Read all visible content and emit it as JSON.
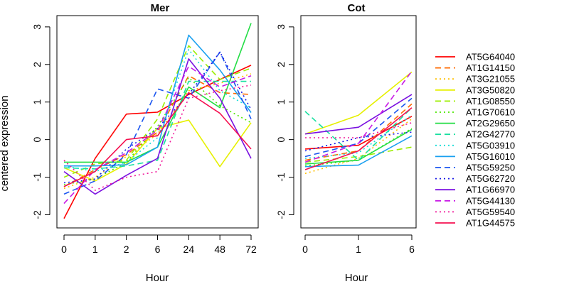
{
  "figure": {
    "ylabel": "centered expression",
    "legend_placement": "right"
  },
  "series_legend": [
    {
      "name": "AT5G64040",
      "color": "#FF0000",
      "dash": "solid"
    },
    {
      "name": "AT1G14150",
      "color": "#FF6A00",
      "dash": "dashed"
    },
    {
      "name": "AT3G21055",
      "color": "#FFC000",
      "dash": "dotted"
    },
    {
      "name": "AT3G50820",
      "color": "#E6F000",
      "dash": "solid"
    },
    {
      "name": "AT1G08550",
      "color": "#9BEE00",
      "dash": "dashed"
    },
    {
      "name": "AT1G70610",
      "color": "#4CE800",
      "dash": "dotted"
    },
    {
      "name": "AT2G29650",
      "color": "#22DD44",
      "dash": "solid"
    },
    {
      "name": "AT2G42770",
      "color": "#18E0A0",
      "dash": "dashed"
    },
    {
      "name": "AT5G03910",
      "color": "#18DDD8",
      "dash": "dotted"
    },
    {
      "name": "AT5G16010",
      "color": "#1AA0F0",
      "dash": "solid"
    },
    {
      "name": "AT5G59250",
      "color": "#1A55F0",
      "dash": "dashed"
    },
    {
      "name": "AT5G62720",
      "color": "#1A1AE6",
      "dash": "dotted"
    },
    {
      "name": "AT1G66970",
      "color": "#7A10E0",
      "dash": "solid"
    },
    {
      "name": "AT5G44130",
      "color": "#C81AE6",
      "dash": "dashed"
    },
    {
      "name": "AT5G59540",
      "color": "#F0189A",
      "dash": "dotted"
    },
    {
      "name": "AT1G44575",
      "color": "#F51050",
      "dash": "solid"
    }
  ],
  "chart_data": [
    {
      "type": "line",
      "title": "Mer",
      "xlabel": "Hour",
      "ylabel": "centered expression",
      "categories": [
        "0",
        "1",
        "2",
        "6",
        "24",
        "48",
        "72"
      ],
      "yticks": [
        -2,
        -1,
        0,
        1,
        2,
        3
      ],
      "ylim": [
        -2.35,
        3.3
      ],
      "grid": false,
      "series": [
        {
          "name": "AT5G64040",
          "values": [
            -2.1,
            -0.5,
            0.68,
            0.73,
            1.2,
            1.6,
            1.98
          ]
        },
        {
          "name": "AT1G14150",
          "values": [
            -1.25,
            -0.8,
            -0.4,
            0.2,
            1.7,
            1.25,
            1.2
          ]
        },
        {
          "name": "AT3G21055",
          "values": [
            -1.3,
            -1.0,
            -0.45,
            0.15,
            1.3,
            1.5,
            1.75
          ]
        },
        {
          "name": "AT3G50820",
          "values": [
            -0.75,
            -1.1,
            -0.65,
            0.3,
            0.52,
            -0.72,
            0.45
          ]
        },
        {
          "name": "AT1G08550",
          "values": [
            -1.0,
            -0.65,
            -0.55,
            0.55,
            2.5,
            1.6,
            1.9
          ]
        },
        {
          "name": "AT1G70610",
          "values": [
            -1.2,
            -1.05,
            -0.6,
            0.35,
            1.65,
            0.9,
            0.45
          ]
        },
        {
          "name": "AT2G29650",
          "values": [
            -0.6,
            -0.6,
            -0.6,
            -0.2,
            1.4,
            0.85,
            3.1
          ]
        },
        {
          "name": "AT2G42770",
          "values": [
            -0.75,
            -0.78,
            -0.7,
            -0.55,
            1.55,
            1.55,
            1.55
          ]
        },
        {
          "name": "AT5G03910",
          "values": [
            -0.7,
            -0.85,
            -0.6,
            0.05,
            2.4,
            1.3,
            0.85
          ]
        },
        {
          "name": "AT5G16010",
          "values": [
            -0.7,
            -0.7,
            -0.67,
            -0.2,
            2.78,
            1.85,
            0.72
          ]
        },
        {
          "name": "AT5G59250",
          "values": [
            -1.45,
            -1.1,
            -0.4,
            1.35,
            1.1,
            2.33,
            0.55
          ]
        },
        {
          "name": "AT5G62720",
          "values": [
            -1.15,
            -1.05,
            -0.25,
            0.3,
            1.2,
            2.33,
            0.8
          ]
        },
        {
          "name": "AT1G66970",
          "values": [
            -0.85,
            -1.45,
            -0.95,
            -0.5,
            2.15,
            1.1,
            -0.5
          ]
        },
        {
          "name": "AT5G44130",
          "values": [
            -1.7,
            -0.8,
            -0.35,
            0.25,
            1.95,
            1.4,
            1.7
          ]
        },
        {
          "name": "AT5G59540",
          "values": [
            -0.55,
            -1.35,
            -1.0,
            -0.85,
            1.1,
            1.3,
            1.45
          ]
        },
        {
          "name": "AT1G44575",
          "values": [
            -1.25,
            -0.85,
            0.0,
            0.1,
            1.25,
            0.7,
            -0.25
          ]
        }
      ]
    },
    {
      "type": "line",
      "title": "Cot",
      "xlabel": "Hour",
      "categories": [
        "0",
        "1",
        "6"
      ],
      "yticks": [
        -2,
        -1,
        0,
        1,
        2,
        3
      ],
      "ylim": [
        -2.35,
        3.3
      ],
      "grid": false,
      "series": [
        {
          "name": "AT5G64040",
          "values": [
            -0.25,
            -0.15,
            0.62
          ]
        },
        {
          "name": "AT1G14150",
          "values": [
            -0.55,
            -0.3,
            0.95
          ]
        },
        {
          "name": "AT3G21055",
          "values": [
            -0.9,
            -0.5,
            0.55
          ]
        },
        {
          "name": "AT3G50820",
          "values": [
            0.15,
            0.65,
            1.8
          ]
        },
        {
          "name": "AT1G08550",
          "values": [
            -0.6,
            -0.45,
            -0.2
          ]
        },
        {
          "name": "AT1G70610",
          "values": [
            -0.7,
            -0.55,
            0.3
          ]
        },
        {
          "name": "AT2G29650",
          "values": [
            -0.65,
            -0.55,
            0.27
          ]
        },
        {
          "name": "AT2G42770",
          "values": [
            0.75,
            -0.55,
            0.85
          ]
        },
        {
          "name": "AT5G03910",
          "values": [
            -0.5,
            -0.35,
            0.65
          ]
        },
        {
          "name": "AT5G16010",
          "values": [
            -0.72,
            -0.68,
            0.1
          ]
        },
        {
          "name": "AT5G59250",
          "values": [
            -0.45,
            -0.1,
            1.1
          ]
        },
        {
          "name": "AT5G62720",
          "values": [
            -0.3,
            0.05,
            0.2
          ]
        },
        {
          "name": "AT1G66970",
          "values": [
            0.15,
            0.33,
            1.2
          ]
        },
        {
          "name": "AT5G44130",
          "values": [
            -0.6,
            -0.1,
            1.82
          ]
        },
        {
          "name": "AT5G59540",
          "values": [
            0.05,
            0.05,
            0.45
          ]
        },
        {
          "name": "AT1G44575",
          "values": [
            -0.8,
            -0.3,
            0.85
          ]
        }
      ]
    }
  ]
}
